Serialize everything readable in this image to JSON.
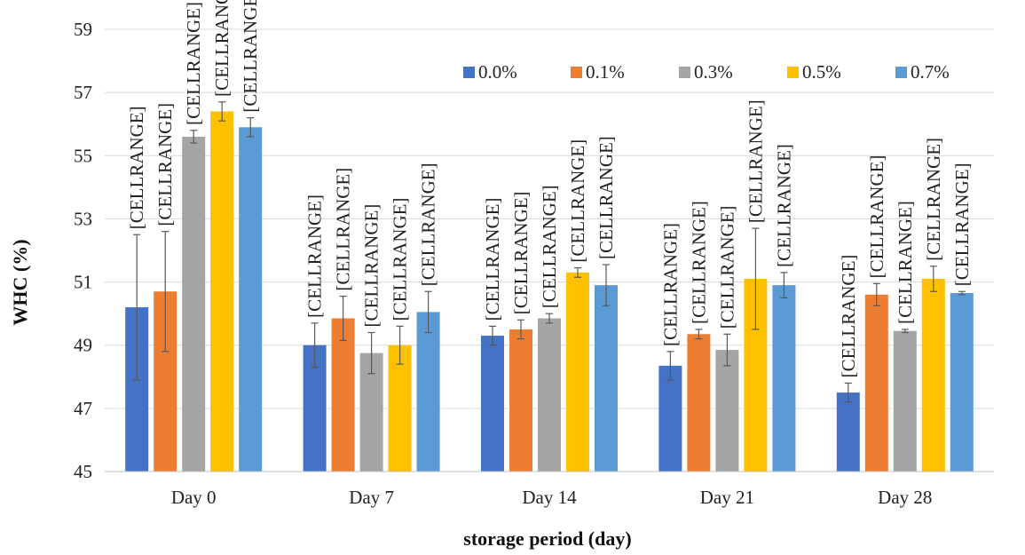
{
  "chart_data": {
    "type": "bar",
    "title": "",
    "xlabel": "storage period (day)",
    "ylabel": "WHC (%)",
    "ylim": [
      45,
      59
    ],
    "yticks": [
      45,
      47,
      49,
      51,
      53,
      55,
      57,
      59
    ],
    "grid": true,
    "legend": "top-right",
    "categories": [
      "Day 0",
      "Day 7",
      "Day 14",
      "Day 21",
      "Day 28"
    ],
    "data_label_text": "[CELLRANGE]",
    "series": [
      {
        "name": "0.0%",
        "color": "#4472C4",
        "values": [
          50.2,
          49.0,
          49.3,
          48.35,
          47.5
        ],
        "errors": [
          2.3,
          0.7,
          0.3,
          0.45,
          0.3
        ]
      },
      {
        "name": "0.1%",
        "color": "#ED7D31",
        "values": [
          50.7,
          49.85,
          49.5,
          49.35,
          50.6
        ],
        "errors": [
          1.9,
          0.7,
          0.3,
          0.15,
          0.35
        ]
      },
      {
        "name": "0.3%",
        "color": "#A5A5A5",
        "values": [
          55.6,
          48.75,
          49.85,
          48.85,
          49.45
        ],
        "errors": [
          0.2,
          0.65,
          0.15,
          0.5,
          0.05
        ]
      },
      {
        "name": "0.5%",
        "color": "#FFC000",
        "values": [
          56.4,
          49.0,
          51.3,
          51.1,
          51.1
        ],
        "errors": [
          0.3,
          0.6,
          0.15,
          1.6,
          0.4
        ]
      },
      {
        "name": "0.7%",
        "color": "#5B9BD5",
        "values": [
          55.9,
          50.05,
          50.9,
          50.9,
          50.65
        ],
        "errors": [
          0.3,
          0.65,
          0.65,
          0.4,
          0.05
        ]
      }
    ]
  }
}
